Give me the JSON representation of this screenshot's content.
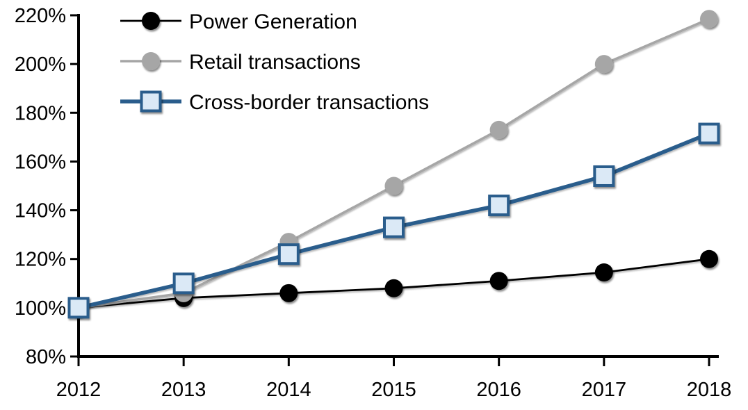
{
  "page": {
    "background": "#ffffff"
  },
  "chart_data": {
    "type": "line",
    "title": "",
    "categories": [
      "2012",
      "2013",
      "2014",
      "2015",
      "2016",
      "2017",
      "2018"
    ],
    "series": [
      {
        "name": "Power Generation",
        "values": [
          100,
          104,
          106,
          108,
          111,
          114.5,
          120
        ],
        "color": "#000000",
        "marker": "circle",
        "marker_fill": "#000000",
        "marker_stroke": "#000000",
        "line_width": 2.8
      },
      {
        "name": "Retail transactions",
        "values": [
          100,
          106,
          127,
          150,
          173,
          200,
          218.5
        ],
        "color": "#a6a6a6",
        "marker": "circle",
        "marker_fill": "#a6a6a6",
        "marker_stroke": "#a6a6a6",
        "line_width": 3.6
      },
      {
        "name": "Cross-border transactions",
        "values": [
          100,
          110,
          122,
          133,
          142,
          154,
          171.5
        ],
        "color": "#2a5d8c",
        "marker": "square",
        "marker_fill": "#dbe9f6",
        "marker_stroke": "#2a5d8c",
        "line_width": 5.5
      }
    ],
    "y_axis": {
      "min": 80,
      "max": 220,
      "step": 20,
      "suffix": "%",
      "labels": [
        "80%",
        "100%",
        "120%",
        "140%",
        "160%",
        "180%",
        "200%",
        "220%"
      ]
    },
    "x_axis": {
      "labels": [
        "2012",
        "2013",
        "2014",
        "2015",
        "2016",
        "2017",
        "2018"
      ]
    },
    "legend": {
      "position": "top-left",
      "entries": [
        "Power Generation",
        "Retail transactions",
        "Cross-border transactions"
      ]
    },
    "grid": false,
    "axis_color": "#000000",
    "text_color": "#000000",
    "ylim": [
      80,
      220
    ],
    "values_are_index_pct_of_2012": true
  }
}
